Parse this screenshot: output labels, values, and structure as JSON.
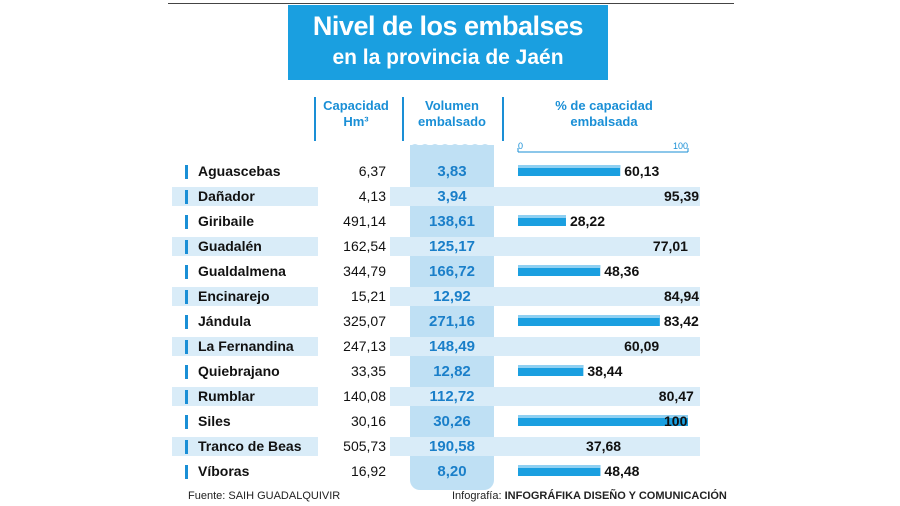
{
  "title": {
    "line1": "Nivel de los embalses",
    "line2": "en la provincia de Jaén"
  },
  "columns": {
    "capacity_l1": "Capacidad",
    "capacity_l2": "Hm³",
    "volume_l1": "Volumen",
    "volume_l2": "embalsado",
    "percent_l1": "% de capacidad",
    "percent_l2": "embalsada"
  },
  "axis": {
    "min_label": "0",
    "max_label": "100"
  },
  "footer": {
    "source": "Fuente: SAIH GUADALQUIVIR",
    "credit_prefix": "Infografía: ",
    "credit_name": "INFOGRÁFIKA DISEÑO Y COMUNICACIÓN"
  },
  "colors": {
    "accent": "#1a9fe0",
    "band": "#d9ecf8",
    "volume_column": "#bfe0f4"
  },
  "chart_data": {
    "type": "bar",
    "title": "Nivel de los embalses en la provincia de Jaén",
    "xlabel": "% de capacidad embalsada",
    "xlim": [
      0,
      100
    ],
    "categories": [
      "Aguascebas",
      "Dañador",
      "Giribaile",
      "Guadalén",
      "Gualdalmena",
      "Encinarejo",
      "Jándula",
      "La Fernandina",
      "Quiebrajano",
      "Rumblar",
      "Siles",
      "Tranco de Beas",
      "Víboras"
    ],
    "capacity": [
      "6,37",
      "4,13",
      "491,14",
      "162,54",
      "344,79",
      "15,21",
      "325,07",
      "247,13",
      "33,35",
      "140,08",
      "30,16",
      "505,73",
      "16,92"
    ],
    "volume": [
      "3,83",
      "3,94",
      "138,61",
      "125,17",
      "166,72",
      "12,92",
      "271,16",
      "148,49",
      "12,82",
      "112,72",
      "30,26",
      "190,58",
      "8,20"
    ],
    "percent_labels": [
      "60,13",
      "95,39",
      "28,22",
      "77,01",
      "48,36",
      "84,94",
      "83,42",
      "60,09",
      "38,44",
      "80,47",
      "100",
      "37,68",
      "48,48"
    ],
    "values": [
      60.13,
      95.39,
      28.22,
      77.01,
      48.36,
      84.94,
      83.42,
      60.09,
      38.44,
      80.47,
      100,
      37.68,
      48.48
    ]
  }
}
